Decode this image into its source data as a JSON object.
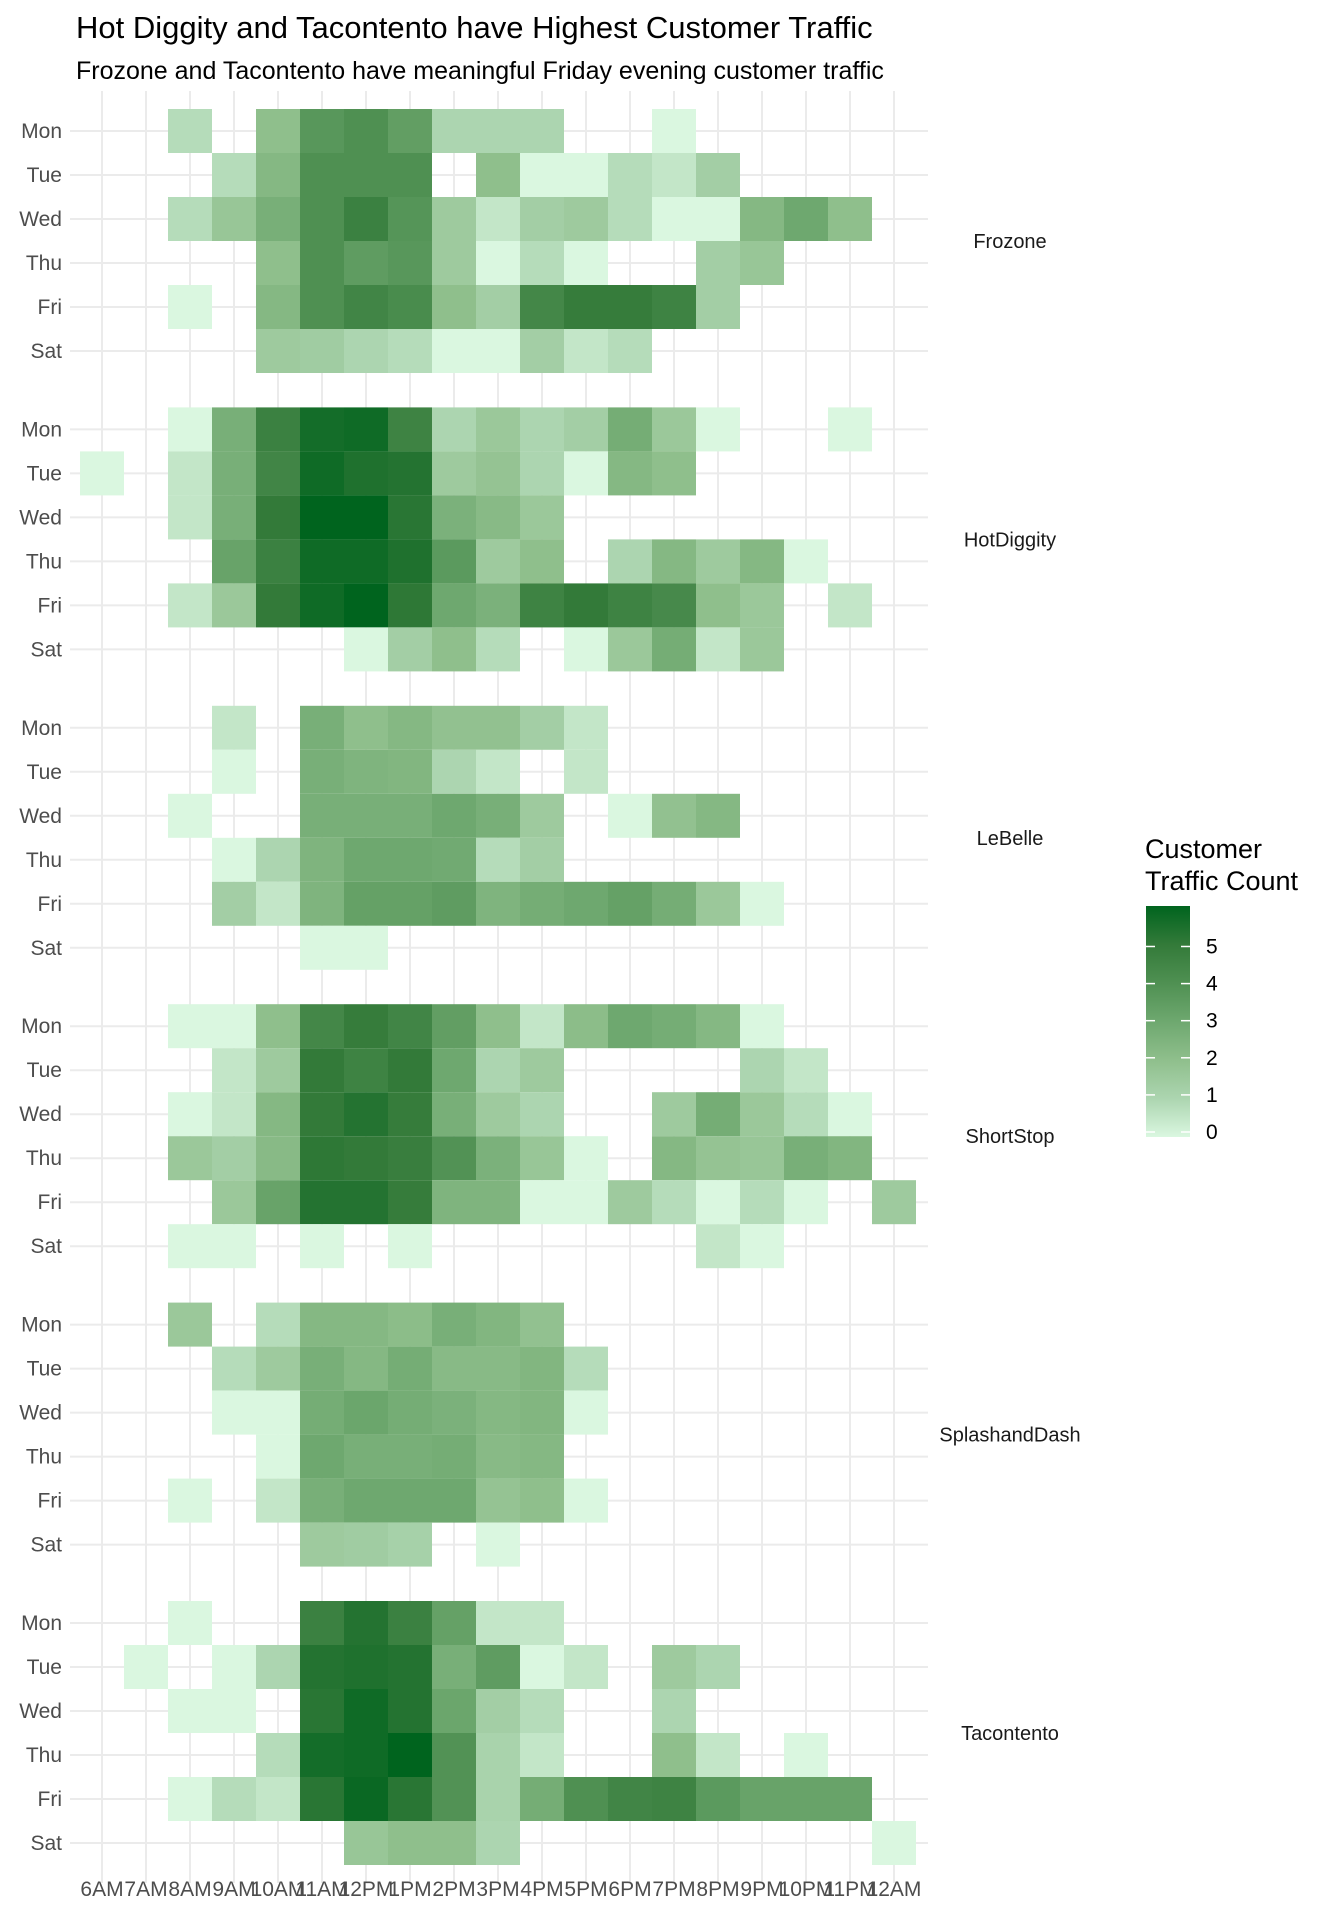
{
  "chart_data": {
    "type": "heatmap",
    "title": "Hot Diggity and Tacontento have Highest Customer Traffic",
    "subtitle": "Frozone and Tacontento have meaningful Friday evening customer traffic",
    "xlabel": "",
    "ylabel": "",
    "x_categories": [
      "6AM",
      "7AM",
      "8AM",
      "9AM",
      "10AM",
      "11AM",
      "12PM",
      "1PM",
      "2PM",
      "3PM",
      "4PM",
      "5PM",
      "6PM",
      "7PM",
      "8PM",
      "9PM",
      "10PM",
      "11PM",
      "12AM"
    ],
    "y_categories": [
      "Mon",
      "Tue",
      "Wed",
      "Thu",
      "Fri",
      "Sat"
    ],
    "legend": {
      "title_line1": "Customer",
      "title_line2": "Traffic Count",
      "ticks": [
        0,
        1,
        2,
        3,
        4,
        5
      ],
      "range": [
        0,
        6
      ],
      "placement": "right",
      "low_color": "#daf7e0",
      "high_color": "#00641e"
    },
    "grid": true,
    "facets": [
      {
        "name": "Frozone",
        "values": [
          [
            null,
            null,
            0.8,
            null,
            2.0,
            3.7,
            4.0,
            3.4,
            1.0,
            1.0,
            1.0,
            null,
            null,
            0,
            null,
            null,
            null,
            null,
            null
          ],
          [
            null,
            null,
            null,
            0.8,
            2.3,
            4.0,
            4.0,
            4.0,
            null,
            2.0,
            0,
            0,
            0.8,
            0.5,
            1.3,
            null,
            null,
            null,
            null
          ],
          [
            null,
            null,
            0.8,
            1.7,
            2.7,
            4.0,
            4.7,
            3.8,
            1.5,
            0.5,
            1.3,
            1.5,
            0.8,
            0,
            0,
            2.3,
            3.0,
            2.0,
            null
          ],
          [
            null,
            null,
            null,
            null,
            2.0,
            4.0,
            3.5,
            3.7,
            1.5,
            0,
            0.8,
            0,
            null,
            null,
            1.3,
            1.7,
            null,
            null,
            null
          ],
          [
            null,
            null,
            0,
            null,
            2.3,
            4.0,
            4.5,
            4.2,
            2.0,
            1.3,
            4.4,
            4.9,
            4.9,
            4.6,
            1.3,
            null,
            null,
            null,
            null
          ],
          [
            null,
            null,
            null,
            null,
            1.5,
            1.4,
            1.0,
            0.8,
            0,
            0,
            1.3,
            0.5,
            0.8,
            null,
            null,
            null,
            null,
            null,
            null
          ]
        ]
      },
      {
        "name": "HotDiggity",
        "values": [
          [
            null,
            null,
            0,
            2.7,
            4.7,
            5.6,
            5.7,
            4.6,
            1.0,
            1.6,
            1.0,
            1.3,
            2.8,
            1.6,
            0,
            null,
            null,
            0,
            null
          ],
          [
            0,
            null,
            0.5,
            2.7,
            4.5,
            5.7,
            5.4,
            5.3,
            1.5,
            1.8,
            1.0,
            0,
            2.3,
            2.0,
            null,
            null,
            null,
            null,
            null
          ],
          [
            null,
            null,
            0.5,
            2.7,
            5.0,
            6.0,
            6.0,
            5.2,
            2.6,
            2.2,
            1.6,
            null,
            null,
            null,
            null,
            null,
            null,
            null,
            null
          ],
          [
            null,
            null,
            null,
            3.2,
            4.7,
            5.7,
            5.7,
            5.4,
            3.6,
            1.5,
            2.0,
            null,
            1.0,
            2.3,
            1.5,
            2.3,
            0,
            null,
            null
          ],
          [
            null,
            null,
            0.5,
            1.6,
            5.0,
            5.7,
            6.0,
            5.1,
            3.0,
            2.6,
            4.6,
            5.0,
            4.6,
            4.3,
            2.0,
            1.6,
            null,
            0.5,
            null
          ],
          [
            null,
            null,
            null,
            null,
            null,
            null,
            0,
            1.3,
            2.0,
            0.8,
            null,
            0,
            1.6,
            2.8,
            0.5,
            1.6,
            null,
            null,
            null
          ]
        ]
      },
      {
        "name": "LeBelle",
        "values": [
          [
            null,
            null,
            null,
            0.5,
            null,
            2.7,
            2.0,
            2.3,
            1.9,
            1.9,
            1.3,
            0.5,
            null,
            null,
            null,
            null,
            null,
            null,
            null
          ],
          [
            null,
            null,
            null,
            0,
            null,
            2.7,
            2.5,
            2.4,
            1.0,
            0.5,
            null,
            0.5,
            null,
            null,
            null,
            null,
            null,
            null,
            null
          ],
          [
            null,
            null,
            0,
            null,
            null,
            2.7,
            2.7,
            2.7,
            3.0,
            2.7,
            1.5,
            null,
            0,
            1.9,
            2.3,
            null,
            null,
            null,
            null
          ],
          [
            null,
            null,
            null,
            0,
            1.0,
            2.5,
            3.0,
            3.0,
            2.9,
            0.8,
            1.3,
            null,
            null,
            null,
            null,
            null,
            null,
            null,
            null
          ],
          [
            null,
            null,
            null,
            1.3,
            0.5,
            2.5,
            3.3,
            3.3,
            3.5,
            2.5,
            2.8,
            3.0,
            3.3,
            2.8,
            1.6,
            0,
            null,
            null,
            null
          ],
          [
            null,
            null,
            null,
            null,
            null,
            0,
            0,
            null,
            null,
            null,
            null,
            null,
            null,
            null,
            null,
            null,
            null,
            null,
            null
          ]
        ]
      },
      {
        "name": "ShortStop",
        "values": [
          [
            null,
            null,
            0,
            0,
            2.0,
            4.4,
            4.9,
            4.5,
            3.4,
            2.0,
            0.5,
            2.1,
            3.0,
            2.8,
            2.3,
            0,
            null,
            null,
            null
          ],
          [
            null,
            null,
            null,
            0.5,
            1.5,
            5.0,
            4.6,
            5.0,
            3.0,
            1.0,
            1.5,
            null,
            null,
            null,
            null,
            1.0,
            0.5,
            null,
            null
          ],
          [
            null,
            null,
            0,
            0.5,
            2.3,
            5.0,
            5.3,
            4.9,
            2.7,
            1.5,
            1.0,
            null,
            null,
            1.5,
            2.8,
            1.6,
            0.8,
            0,
            null
          ],
          [
            null,
            null,
            1.6,
            1.3,
            2.2,
            5.1,
            5.0,
            4.8,
            3.9,
            2.6,
            1.7,
            0,
            null,
            2.3,
            1.8,
            1.7,
            2.7,
            2.4,
            null
          ],
          [
            null,
            null,
            null,
            1.6,
            3.2,
            5.3,
            5.3,
            4.9,
            2.5,
            2.5,
            0,
            0,
            1.5,
            0.8,
            0,
            0.8,
            0,
            null,
            1.5
          ],
          [
            null,
            null,
            0,
            0,
            null,
            0,
            null,
            0,
            null,
            null,
            null,
            null,
            null,
            null,
            0.5,
            0,
            null,
            null,
            null
          ]
        ]
      },
      {
        "name": "SplashandDash",
        "values": [
          [
            null,
            null,
            1.6,
            null,
            0.8,
            2.3,
            2.3,
            2.1,
            2.7,
            2.4,
            1.9,
            null,
            null,
            null,
            null,
            null,
            null,
            null,
            null
          ],
          [
            null,
            null,
            null,
            0.8,
            1.5,
            2.7,
            2.3,
            2.8,
            2.2,
            2.2,
            2.4,
            0.8,
            null,
            null,
            null,
            null,
            null,
            null,
            null
          ],
          [
            null,
            null,
            null,
            0,
            0,
            2.8,
            3.1,
            2.8,
            2.6,
            2.3,
            2.4,
            0,
            null,
            null,
            null,
            null,
            null,
            null,
            null
          ],
          [
            null,
            null,
            null,
            null,
            0,
            3.0,
            2.7,
            2.7,
            2.8,
            2.2,
            2.3,
            null,
            null,
            null,
            null,
            null,
            null,
            null,
            null
          ],
          [
            null,
            null,
            0,
            null,
            0.5,
            2.7,
            3.0,
            3.0,
            3.0,
            1.8,
            2.0,
            0,
            null,
            null,
            null,
            null,
            null,
            null,
            null
          ],
          [
            null,
            null,
            null,
            null,
            null,
            1.5,
            1.4,
            1.2,
            null,
            0,
            null,
            null,
            null,
            null,
            null,
            null,
            null,
            null,
            null
          ]
        ]
      },
      {
        "name": "Tacontento",
        "values": [
          [
            null,
            null,
            0,
            null,
            null,
            4.7,
            5.3,
            4.7,
            3.3,
            0.5,
            0.5,
            null,
            null,
            null,
            null,
            null,
            null,
            null,
            null
          ],
          [
            null,
            0,
            null,
            0,
            1.0,
            5.3,
            5.4,
            5.3,
            2.7,
            3.5,
            0,
            0.5,
            null,
            1.5,
            1.0,
            null,
            null,
            null,
            null
          ],
          [
            null,
            null,
            0,
            0,
            null,
            5.2,
            5.7,
            5.3,
            3.1,
            1.3,
            0.8,
            null,
            null,
            1.0,
            null,
            null,
            null,
            null,
            null
          ],
          [
            null,
            null,
            null,
            null,
            0.8,
            5.6,
            5.7,
            6.0,
            3.9,
            1.1,
            0.5,
            null,
            null,
            2.0,
            0.5,
            null,
            0,
            null,
            null
          ],
          [
            null,
            null,
            0,
            0.8,
            0.5,
            5.2,
            5.8,
            5.2,
            3.9,
            1.1,
            2.8,
            4.0,
            4.5,
            4.6,
            3.6,
            3.2,
            3.2,
            3.2,
            null
          ],
          [
            null,
            null,
            null,
            null,
            null,
            null,
            1.7,
            2.0,
            2.0,
            1.0,
            null,
            null,
            null,
            null,
            null,
            null,
            null,
            null,
            0
          ]
        ]
      }
    ]
  }
}
